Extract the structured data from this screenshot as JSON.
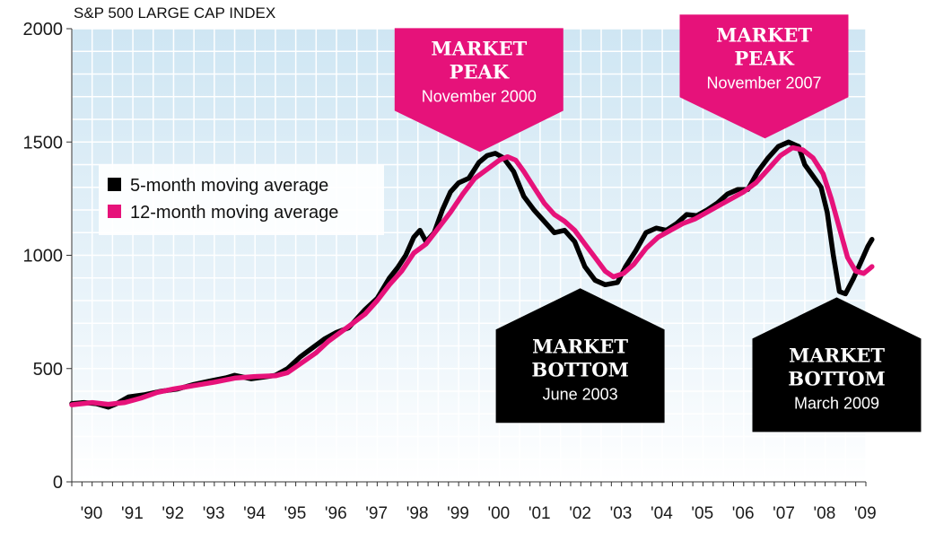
{
  "chart_data": {
    "type": "line",
    "title": "S&P 500 LARGE CAP INDEX",
    "xlabel": "",
    "ylabel": "",
    "ylim": [
      0,
      2000
    ],
    "xlim": [
      1990,
      2009.5
    ],
    "yticks": [
      0,
      500,
      1000,
      1500,
      2000
    ],
    "xtick_labels": [
      {
        "x": 1990,
        "label": "'90"
      },
      {
        "x": 1991,
        "label": "'91"
      },
      {
        "x": 1992,
        "label": "'92"
      },
      {
        "x": 1993,
        "label": "'93"
      },
      {
        "x": 1994,
        "label": "'94"
      },
      {
        "x": 1995,
        "label": "'95"
      },
      {
        "x": 1996,
        "label": "'96"
      },
      {
        "x": 1997,
        "label": "'97"
      },
      {
        "x": 1998,
        "label": "'98"
      },
      {
        "x": 1999,
        "label": "'99"
      },
      {
        "x": 2000,
        "label": "'00"
      },
      {
        "x": 2001,
        "label": "'01"
      },
      {
        "x": 2002,
        "label": "'02"
      },
      {
        "x": 2003,
        "label": "'03"
      },
      {
        "x": 2004,
        "label": "'04"
      },
      {
        "x": 2005,
        "label": "'05"
      },
      {
        "x": 2006,
        "label": "'06"
      },
      {
        "x": 2007,
        "label": "'07"
      },
      {
        "x": 2008,
        "label": "'08"
      },
      {
        "x": 2009,
        "label": "'09"
      }
    ],
    "grid": true,
    "legend_position": "left",
    "series": [
      {
        "name": "5-month moving average",
        "color": "#000000",
        "points": [
          [
            1990.0,
            345
          ],
          [
            1990.3,
            350
          ],
          [
            1990.6,
            345
          ],
          [
            1990.9,
            330
          ],
          [
            1991.1,
            345
          ],
          [
            1991.4,
            375
          ],
          [
            1991.8,
            385
          ],
          [
            1992.2,
            400
          ],
          [
            1992.6,
            410
          ],
          [
            1993.0,
            430
          ],
          [
            1993.4,
            445
          ],
          [
            1993.8,
            460
          ],
          [
            1994.0,
            470
          ],
          [
            1994.4,
            455
          ],
          [
            1994.8,
            465
          ],
          [
            1995.0,
            470
          ],
          [
            1995.3,
            500
          ],
          [
            1995.6,
            550
          ],
          [
            1995.9,
            590
          ],
          [
            1996.2,
            630
          ],
          [
            1996.5,
            660
          ],
          [
            1996.8,
            680
          ],
          [
            1997.0,
            720
          ],
          [
            1997.2,
            760
          ],
          [
            1997.5,
            810
          ],
          [
            1997.8,
            900
          ],
          [
            1998.0,
            945
          ],
          [
            1998.2,
            1000
          ],
          [
            1998.4,
            1080
          ],
          [
            1998.55,
            1110
          ],
          [
            1998.7,
            1060
          ],
          [
            1998.9,
            1100
          ],
          [
            1999.1,
            1200
          ],
          [
            1999.3,
            1280
          ],
          [
            1999.5,
            1320
          ],
          [
            1999.75,
            1340
          ],
          [
            2000.0,
            1410
          ],
          [
            2000.2,
            1440
          ],
          [
            2000.4,
            1450
          ],
          [
            2000.6,
            1430
          ],
          [
            2000.85,
            1370
          ],
          [
            2001.1,
            1260
          ],
          [
            2001.35,
            1200
          ],
          [
            2001.6,
            1150
          ],
          [
            2001.85,
            1100
          ],
          [
            2002.1,
            1110
          ],
          [
            2002.35,
            1060
          ],
          [
            2002.6,
            950
          ],
          [
            2002.85,
            890
          ],
          [
            2003.1,
            870
          ],
          [
            2003.4,
            880
          ],
          [
            2003.6,
            950
          ],
          [
            2003.85,
            1020
          ],
          [
            2004.1,
            1100
          ],
          [
            2004.35,
            1120
          ],
          [
            2004.6,
            1110
          ],
          [
            2004.85,
            1140
          ],
          [
            2005.1,
            1180
          ],
          [
            2005.35,
            1175
          ],
          [
            2005.6,
            1200
          ],
          [
            2005.85,
            1230
          ],
          [
            2006.1,
            1270
          ],
          [
            2006.35,
            1290
          ],
          [
            2006.6,
            1290
          ],
          [
            2006.85,
            1370
          ],
          [
            2007.1,
            1430
          ],
          [
            2007.35,
            1480
          ],
          [
            2007.6,
            1500
          ],
          [
            2007.85,
            1480
          ],
          [
            2008.0,
            1400
          ],
          [
            2008.2,
            1350
          ],
          [
            2008.4,
            1300
          ],
          [
            2008.55,
            1190
          ],
          [
            2008.7,
            1000
          ],
          [
            2008.85,
            840
          ],
          [
            2009.0,
            830
          ],
          [
            2009.2,
            900
          ],
          [
            2009.4,
            980
          ],
          [
            2009.55,
            1040
          ],
          [
            2009.65,
            1070
          ]
        ]
      },
      {
        "name": "12-month moving average",
        "color": "#e6127a",
        "points": [
          [
            1990.0,
            340
          ],
          [
            1990.5,
            350
          ],
          [
            1990.9,
            342
          ],
          [
            1991.3,
            350
          ],
          [
            1991.7,
            370
          ],
          [
            1992.1,
            395
          ],
          [
            1992.5,
            410
          ],
          [
            1993.0,
            425
          ],
          [
            1993.5,
            440
          ],
          [
            1994.0,
            458
          ],
          [
            1994.5,
            465
          ],
          [
            1995.0,
            468
          ],
          [
            1995.3,
            482
          ],
          [
            1995.6,
            520
          ],
          [
            1996.0,
            570
          ],
          [
            1996.3,
            620
          ],
          [
            1996.6,
            660
          ],
          [
            1996.9,
            700
          ],
          [
            1997.2,
            740
          ],
          [
            1997.5,
            800
          ],
          [
            1997.8,
            870
          ],
          [
            1998.1,
            930
          ],
          [
            1998.4,
            1010
          ],
          [
            1998.7,
            1050
          ],
          [
            1999.0,
            1120
          ],
          [
            1999.3,
            1190
          ],
          [
            1999.6,
            1270
          ],
          [
            1999.9,
            1340
          ],
          [
            2000.2,
            1380
          ],
          [
            2000.5,
            1420
          ],
          [
            2000.7,
            1435
          ],
          [
            2000.9,
            1420
          ],
          [
            2001.1,
            1370
          ],
          [
            2001.35,
            1300
          ],
          [
            2001.6,
            1230
          ],
          [
            2001.85,
            1180
          ],
          [
            2002.1,
            1150
          ],
          [
            2002.35,
            1110
          ],
          [
            2002.6,
            1050
          ],
          [
            2002.85,
            990
          ],
          [
            2003.1,
            930
          ],
          [
            2003.3,
            905
          ],
          [
            2003.55,
            920
          ],
          [
            2003.8,
            960
          ],
          [
            2004.1,
            1030
          ],
          [
            2004.4,
            1080
          ],
          [
            2004.7,
            1110
          ],
          [
            2005.0,
            1140
          ],
          [
            2005.3,
            1160
          ],
          [
            2005.6,
            1190
          ],
          [
            2005.9,
            1220
          ],
          [
            2006.2,
            1250
          ],
          [
            2006.5,
            1280
          ],
          [
            2006.8,
            1320
          ],
          [
            2007.1,
            1380
          ],
          [
            2007.4,
            1440
          ],
          [
            2007.7,
            1475
          ],
          [
            2007.95,
            1465
          ],
          [
            2008.2,
            1430
          ],
          [
            2008.45,
            1360
          ],
          [
            2008.65,
            1250
          ],
          [
            2008.85,
            1120
          ],
          [
            2009.05,
            990
          ],
          [
            2009.25,
            930
          ],
          [
            2009.45,
            920
          ],
          [
            2009.65,
            950
          ]
        ]
      }
    ],
    "annotations": [
      {
        "kind": "peak",
        "title_line1": "MARKET",
        "title_line2": "PEAK",
        "subtitle": "November 2000",
        "x": 2000.0,
        "y": 1440,
        "color": "#e6127a"
      },
      {
        "kind": "peak",
        "title_line1": "MARKET",
        "title_line2": "PEAK",
        "subtitle": "November 2007",
        "x": 2007.0,
        "y": 1500,
        "color": "#e6127a"
      },
      {
        "kind": "bottom",
        "title_line1": "MARKET",
        "title_line2": "BOTTOM",
        "subtitle": "June 2003",
        "x": 2002.0,
        "y": 870,
        "color": "#000000"
      },
      {
        "kind": "bottom",
        "title_line1": "MARKET",
        "title_line2": "BOTTOM",
        "subtitle": "March 2009",
        "x": 2008.3,
        "y": 830,
        "color": "#000000"
      }
    ]
  }
}
